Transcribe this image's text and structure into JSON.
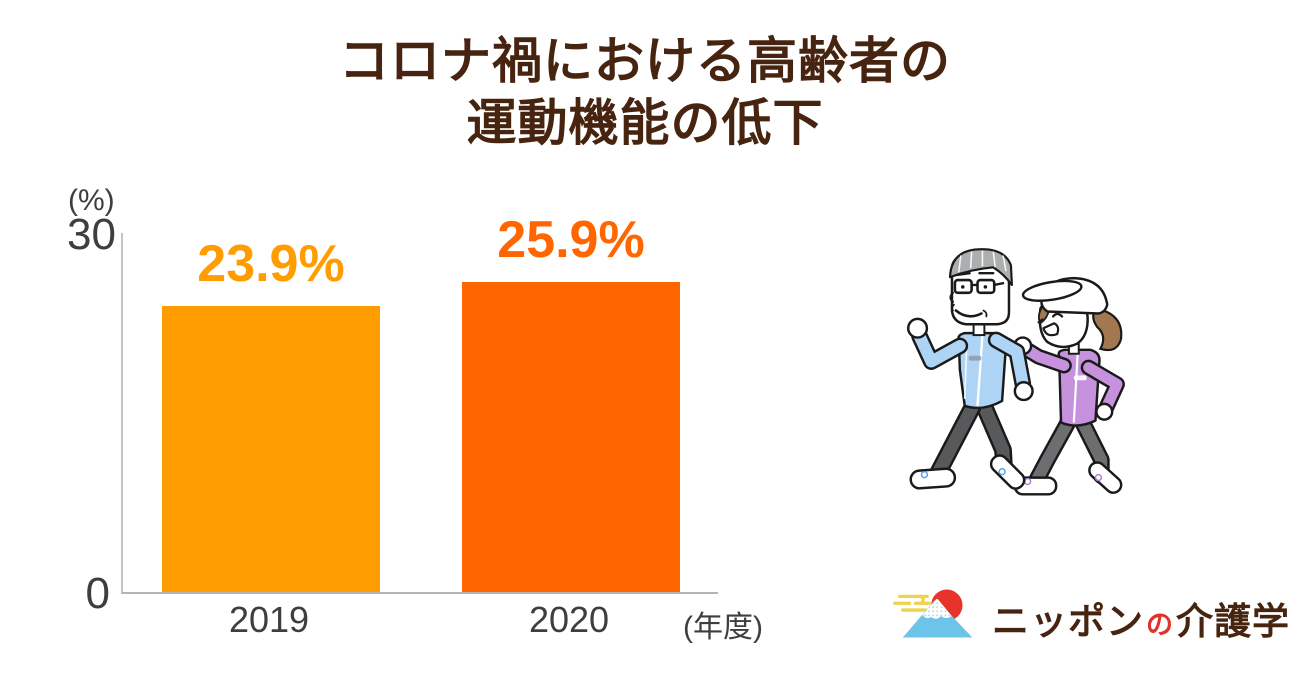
{
  "title": {
    "line1": "コロナ禍における高齢者の",
    "line2": "運動機能の低下"
  },
  "chart_data": {
    "type": "bar",
    "categories": [
      "2019",
      "2020"
    ],
    "values": [
      23.9,
      25.9
    ],
    "value_labels": [
      "23.9%",
      "25.9%"
    ],
    "bar_colors": [
      "#FF9D00",
      "#FF6600"
    ],
    "title": "コロナ禍における高齢者の運動機能の低下",
    "xlabel": "(年度)",
    "ylabel": "(%)",
    "ylim": [
      0,
      30
    ],
    "yticks": [
      "30",
      "0"
    ],
    "grid": false,
    "legend": false
  },
  "axes": {
    "y_unit": "(%)",
    "y_tick_top": "30",
    "y_tick_zero": "0",
    "x_unit": "(年度)"
  },
  "illustration": {
    "icon": "elderly-couple-walking-illustration"
  },
  "logo": {
    "part1": "ニッポン",
    "part2": "の",
    "part3": "介護学",
    "icon": "mount-fuji-sun-clouds-icon"
  },
  "colors": {
    "title_brown": "#47240F",
    "bar_2019": "#FF9D00",
    "bar_2020": "#FF6600",
    "axis_text": "#3E3E3E",
    "axis_line": "#BFBFBF",
    "logo_brown": "#47240F",
    "logo_red": "#E0342B",
    "fuji_blue": "#6CC4E9",
    "sun_red": "#E8332A",
    "cloud_yellow": "#EDD44B",
    "man_jacket_blue": "#AED4F5",
    "woman_jacket_purple": "#C792DD"
  }
}
